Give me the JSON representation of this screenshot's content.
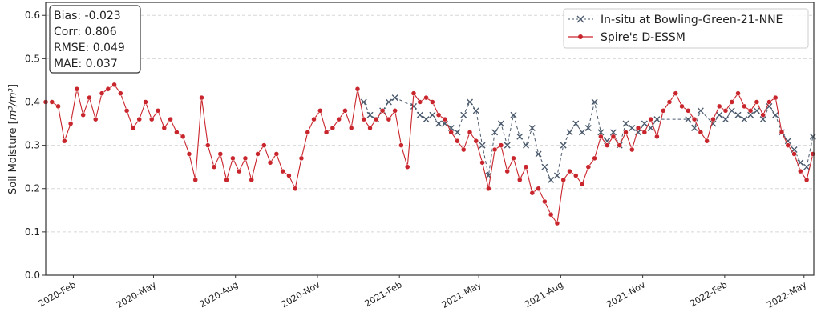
{
  "chart_data": {
    "type": "line",
    "ylabel_prefix": "Soil Moisture [",
    "ylabel_unit": "m³/m³",
    "ylabel_suffix": "]",
    "ylim": [
      0,
      0.63
    ],
    "xlim": [
      "2020-01-01",
      "2022-05-12"
    ],
    "yticks": [
      "0.0",
      "0.1",
      "0.2",
      "0.3",
      "0.4",
      "0.5",
      "0.6"
    ],
    "xticks": [
      {
        "date": "2020-02-01",
        "label": "2020-Feb"
      },
      {
        "date": "2020-05-01",
        "label": "2020-May"
      },
      {
        "date": "2020-08-01",
        "label": "2020-Aug"
      },
      {
        "date": "2020-11-01",
        "label": "2020-Nov"
      },
      {
        "date": "2021-02-01",
        "label": "2021-Feb"
      },
      {
        "date": "2021-05-01",
        "label": "2021-May"
      },
      {
        "date": "2021-08-01",
        "label": "2021-Aug"
      },
      {
        "date": "2021-11-01",
        "label": "2021-Nov"
      },
      {
        "date": "2022-02-01",
        "label": "2022-Feb"
      },
      {
        "date": "2022-05-01",
        "label": "2022-May"
      }
    ],
    "grid": "horizontal dashed",
    "legend_position": "top-right",
    "stats": [
      "Bias: -0.023",
      "Corr: 0.806",
      "RMSE: 0.049",
      "MAE: 0.037"
    ],
    "dates": [
      "2020-01-01",
      "2020-01-08",
      "2020-01-15",
      "2020-01-22",
      "2020-01-29",
      "2020-02-05",
      "2020-02-12",
      "2020-02-19",
      "2020-02-26",
      "2020-03-04",
      "2020-03-11",
      "2020-03-18",
      "2020-03-25",
      "2020-04-01",
      "2020-04-08",
      "2020-04-15",
      "2020-04-22",
      "2020-04-29",
      "2020-05-06",
      "2020-05-13",
      "2020-05-20",
      "2020-05-27",
      "2020-06-03",
      "2020-06-10",
      "2020-06-17",
      "2020-06-24",
      "2020-07-01",
      "2020-07-08",
      "2020-07-15",
      "2020-07-22",
      "2020-07-29",
      "2020-08-05",
      "2020-08-12",
      "2020-08-19",
      "2020-08-26",
      "2020-09-02",
      "2020-09-09",
      "2020-09-16",
      "2020-09-23",
      "2020-09-30",
      "2020-10-07",
      "2020-10-14",
      "2020-10-21",
      "2020-10-28",
      "2020-11-04",
      "2020-11-11",
      "2020-11-18",
      "2020-11-25",
      "2020-12-02",
      "2020-12-09",
      "2020-12-16",
      "2020-12-23",
      "2020-12-30",
      "2021-01-06",
      "2021-01-13",
      "2021-01-20",
      "2021-01-27",
      "2021-02-03",
      "2021-02-10",
      "2021-02-17",
      "2021-02-24",
      "2021-03-03",
      "2021-03-10",
      "2021-03-17",
      "2021-03-24",
      "2021-03-31",
      "2021-04-07",
      "2021-04-14",
      "2021-04-21",
      "2021-04-28",
      "2021-05-05",
      "2021-05-12",
      "2021-05-19",
      "2021-05-26",
      "2021-06-02",
      "2021-06-09",
      "2021-06-16",
      "2021-06-23",
      "2021-06-30",
      "2021-07-07",
      "2021-07-14",
      "2021-07-21",
      "2021-07-28",
      "2021-08-04",
      "2021-08-11",
      "2021-08-18",
      "2021-08-25",
      "2021-09-01",
      "2021-09-08",
      "2021-09-15",
      "2021-09-22",
      "2021-09-29",
      "2021-10-06",
      "2021-10-13",
      "2021-10-20",
      "2021-10-27",
      "2021-11-03",
      "2021-11-10",
      "2021-11-17",
      "2021-11-24",
      "2021-12-01",
      "2021-12-08",
      "2021-12-15",
      "2021-12-22",
      "2021-12-29",
      "2022-01-05",
      "2022-01-12",
      "2022-01-19",
      "2022-01-26",
      "2022-02-02",
      "2022-02-09",
      "2022-02-16",
      "2022-02-23",
      "2022-03-02",
      "2022-03-09",
      "2022-03-16",
      "2022-03-23",
      "2022-03-30",
      "2022-04-06",
      "2022-04-13",
      "2022-04-20",
      "2022-04-27",
      "2022-05-04",
      "2022-05-11"
    ],
    "series": [
      {
        "name": "In-situ at Bowling-Green-21-NNE",
        "color": "#4a596c",
        "marker": "x",
        "linestyle": "dashed",
        "values": [
          null,
          null,
          null,
          null,
          null,
          null,
          null,
          null,
          null,
          null,
          null,
          null,
          null,
          null,
          null,
          null,
          null,
          null,
          null,
          null,
          null,
          null,
          null,
          null,
          null,
          null,
          null,
          null,
          null,
          null,
          null,
          null,
          null,
          null,
          null,
          null,
          null,
          null,
          null,
          null,
          null,
          null,
          null,
          null,
          null,
          null,
          null,
          null,
          null,
          null,
          null,
          0.4,
          0.37,
          0.36,
          0.38,
          0.4,
          0.41,
          null,
          null,
          0.39,
          0.37,
          0.36,
          0.37,
          0.35,
          0.35,
          0.34,
          0.33,
          0.37,
          0.4,
          0.38,
          0.3,
          0.23,
          0.33,
          0.35,
          0.3,
          0.37,
          0.32,
          0.3,
          0.34,
          0.28,
          0.25,
          0.22,
          0.23,
          0.3,
          0.33,
          0.35,
          0.33,
          0.34,
          0.4,
          0.33,
          0.31,
          0.33,
          0.3,
          0.35,
          0.34,
          0.33,
          0.35,
          0.34,
          0.36,
          null,
          null,
          null,
          null,
          0.36,
          0.34,
          0.38,
          null,
          0.35,
          0.37,
          0.36,
          0.38,
          0.37,
          0.36,
          0.37,
          0.38,
          0.36,
          0.39,
          0.37,
          0.33,
          0.31,
          0.29,
          0.26,
          0.25,
          0.32
        ]
      },
      {
        "name": "Spire's D-ESSM",
        "color": "#c9252c",
        "marker": "o",
        "linestyle": "solid",
        "values": [
          0.4,
          0.4,
          0.39,
          0.31,
          0.35,
          0.43,
          0.37,
          0.41,
          0.36,
          0.42,
          0.43,
          0.44,
          0.42,
          0.38,
          0.34,
          0.36,
          0.4,
          0.36,
          0.38,
          0.34,
          0.36,
          0.33,
          0.32,
          0.28,
          0.22,
          0.41,
          0.3,
          0.25,
          0.28,
          0.22,
          0.27,
          0.24,
          0.27,
          0.22,
          0.28,
          0.3,
          0.26,
          0.28,
          0.24,
          0.23,
          0.2,
          0.27,
          0.33,
          0.36,
          0.38,
          0.33,
          0.34,
          0.36,
          0.38,
          0.34,
          0.43,
          0.36,
          0.34,
          0.36,
          0.38,
          0.36,
          0.38,
          0.3,
          0.25,
          0.42,
          0.4,
          0.41,
          0.4,
          0.37,
          0.36,
          0.33,
          0.31,
          0.29,
          0.33,
          0.31,
          0.26,
          0.2,
          0.29,
          0.3,
          0.24,
          0.27,
          0.22,
          0.25,
          0.19,
          0.2,
          0.17,
          0.14,
          0.12,
          0.22,
          0.24,
          0.23,
          0.21,
          0.25,
          0.27,
          0.32,
          0.3,
          0.32,
          0.3,
          0.33,
          0.29,
          0.34,
          0.33,
          0.36,
          0.32,
          0.38,
          0.4,
          0.42,
          0.39,
          0.38,
          0.36,
          0.33,
          0.31,
          0.36,
          0.39,
          0.38,
          0.4,
          0.42,
          0.39,
          0.38,
          0.4,
          0.37,
          0.4,
          0.41,
          0.33,
          0.3,
          0.28,
          0.24,
          0.22,
          0.28
        ]
      }
    ]
  }
}
